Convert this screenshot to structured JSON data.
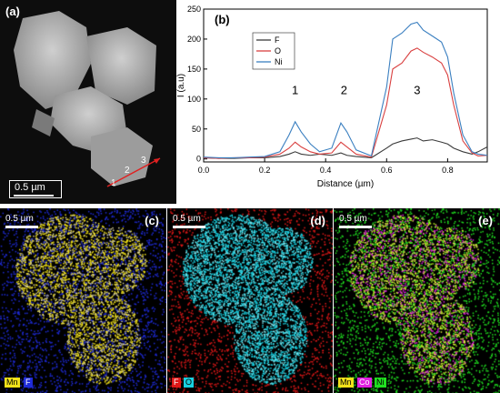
{
  "panel_a": {
    "label": "(a)",
    "scale_bar": "0.5 µm",
    "line_labels": [
      "1",
      "2",
      "3"
    ]
  },
  "panel_b": {
    "label": "(b)"
  },
  "panel_c": {
    "label": "(c)",
    "scale_bar": "0.5 µm",
    "legend": [
      {
        "text": "Mn",
        "color": "#f2e21a"
      },
      {
        "text": "F",
        "color": "#1f2bd8"
      }
    ]
  },
  "panel_d": {
    "label": "(d)",
    "scale_bar": "0.5 µm",
    "legend": [
      {
        "text": "F",
        "color": "#e01818"
      },
      {
        "text": "O",
        "color": "#18d0e0"
      }
    ]
  },
  "panel_e": {
    "label": "(e)",
    "scale_bar": "0.5 µm",
    "legend": [
      {
        "text": "Mn",
        "color": "#f2e21a"
      },
      {
        "text": "Co",
        "color": "#e020e0"
      },
      {
        "text": "Ni",
        "color": "#20e020"
      }
    ]
  },
  "chart_data": {
    "type": "line",
    "xlabel": "Distance (µm)",
    "ylabel": "I (a.u)",
    "xlim": [
      0.0,
      0.93
    ],
    "ylim": [
      -5,
      250
    ],
    "xticks": [
      "0.0",
      "0.2",
      "0.4",
      "0.6",
      "0.8"
    ],
    "yticks": [
      "0",
      "50",
      "100",
      "150",
      "200",
      "250"
    ],
    "legend_position": "top-left",
    "annotations": [
      {
        "text": "1",
        "x": 0.3,
        "y": 108
      },
      {
        "text": "2",
        "x": 0.46,
        "y": 108
      },
      {
        "text": "3",
        "x": 0.7,
        "y": 108
      }
    ],
    "series": [
      {
        "name": "F",
        "color": "#3a3a3a",
        "x": [
          0.0,
          0.05,
          0.1,
          0.15,
          0.2,
          0.25,
          0.28,
          0.3,
          0.32,
          0.35,
          0.38,
          0.42,
          0.45,
          0.47,
          0.5,
          0.55,
          0.6,
          0.62,
          0.65,
          0.68,
          0.7,
          0.72,
          0.75,
          0.78,
          0.8,
          0.82,
          0.85,
          0.88,
          0.9,
          0.93
        ],
        "y": [
          2,
          1,
          1,
          2,
          2,
          4,
          8,
          12,
          8,
          6,
          8,
          6,
          10,
          6,
          4,
          2,
          18,
          25,
          30,
          33,
          35,
          30,
          32,
          28,
          25,
          18,
          12,
          8,
          12,
          20
        ]
      },
      {
        "name": "O",
        "color": "#d94040",
        "x": [
          0.0,
          0.05,
          0.1,
          0.15,
          0.2,
          0.25,
          0.28,
          0.3,
          0.32,
          0.35,
          0.38,
          0.42,
          0.45,
          0.47,
          0.5,
          0.55,
          0.6,
          0.62,
          0.65,
          0.68,
          0.7,
          0.72,
          0.75,
          0.78,
          0.8,
          0.82,
          0.85,
          0.88,
          0.9,
          0.93
        ],
        "y": [
          2,
          1,
          2,
          2,
          3,
          8,
          18,
          28,
          20,
          12,
          8,
          10,
          28,
          20,
          8,
          3,
          90,
          150,
          160,
          180,
          185,
          178,
          170,
          160,
          140,
          90,
          30,
          10,
          5,
          6
        ]
      },
      {
        "name": "Ni",
        "color": "#3a7fc0",
        "x": [
          0.0,
          0.05,
          0.1,
          0.15,
          0.2,
          0.25,
          0.28,
          0.3,
          0.32,
          0.35,
          0.38,
          0.42,
          0.45,
          0.47,
          0.5,
          0.55,
          0.6,
          0.62,
          0.65,
          0.68,
          0.7,
          0.72,
          0.75,
          0.78,
          0.8,
          0.82,
          0.85,
          0.88,
          0.9,
          0.93
        ],
        "y": [
          3,
          2,
          2,
          3,
          4,
          12,
          40,
          62,
          45,
          25,
          12,
          18,
          60,
          45,
          15,
          5,
          120,
          200,
          210,
          225,
          228,
          215,
          205,
          195,
          170,
          110,
          40,
          12,
          8,
          6
        ]
      }
    ]
  }
}
